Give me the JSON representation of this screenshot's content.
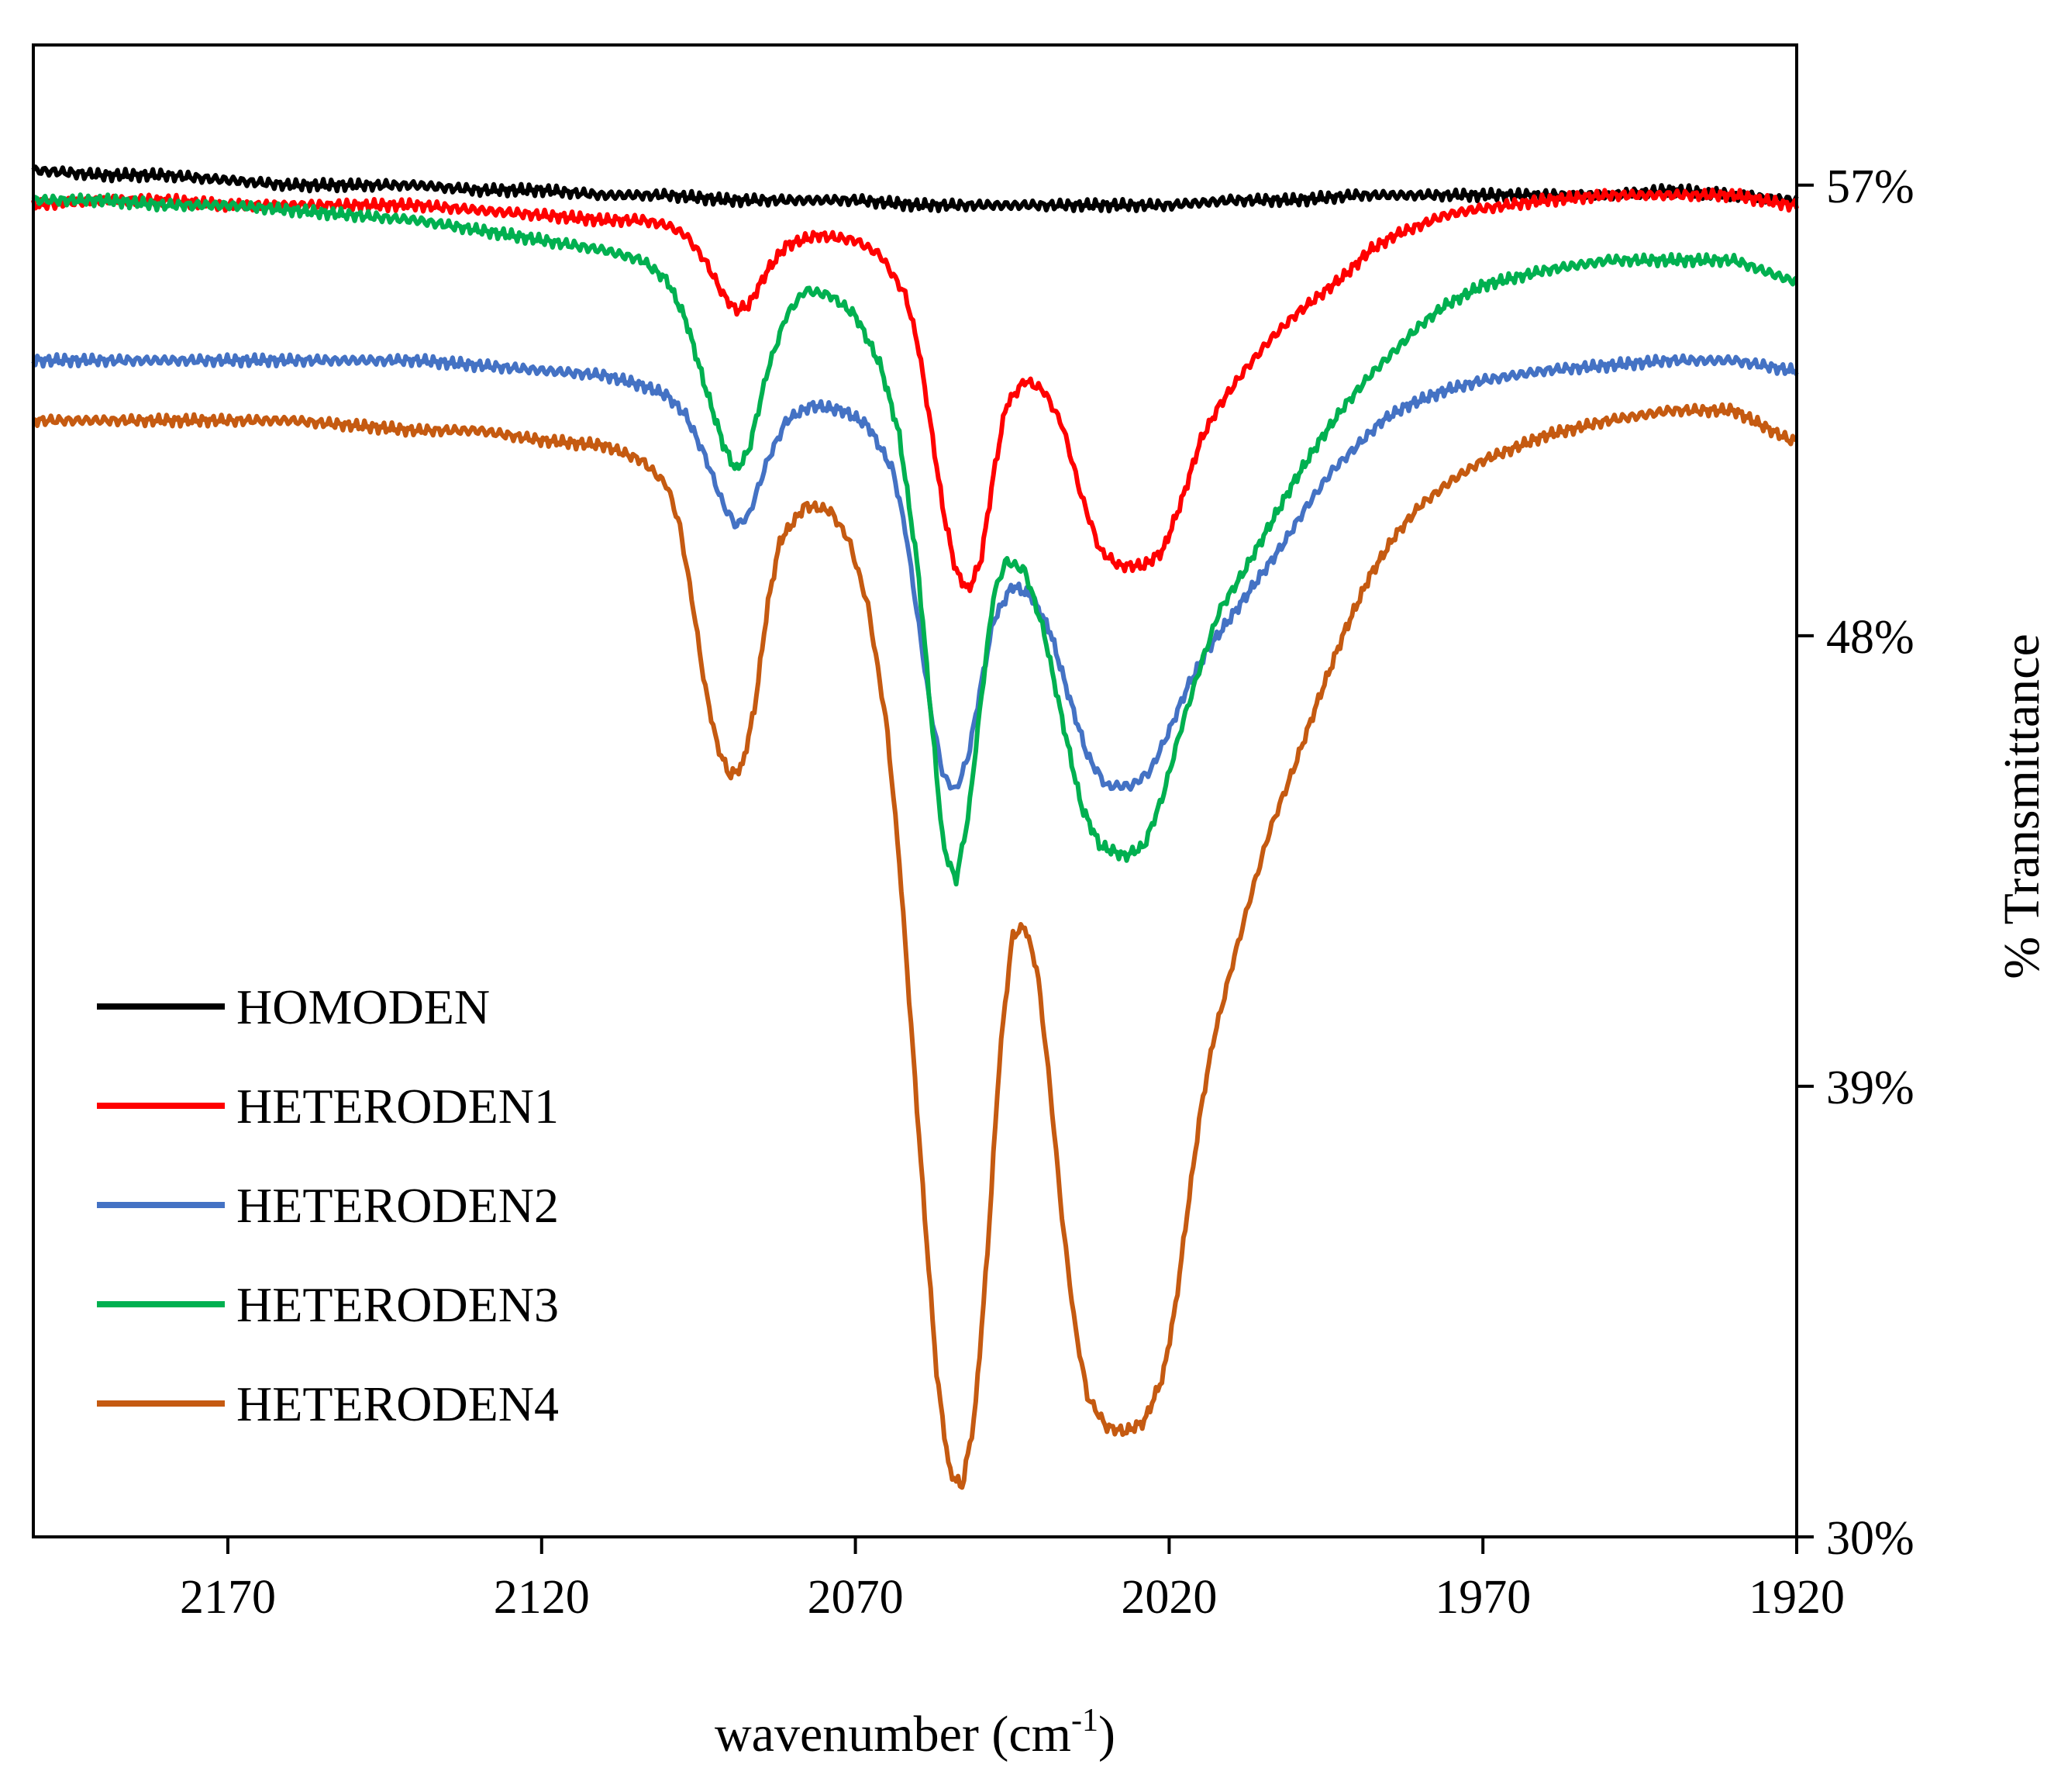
{
  "chart_data": {
    "type": "line",
    "title": "",
    "xlabel": "wavenumber (cm",
    "xlabel_superscript": "-1",
    "xlabel_suffix": ")",
    "ylabel": "% Transmittance",
    "xlim": [
      2201,
      1920
    ],
    "ylim": [
      30,
      59.8
    ],
    "x_reversed": true,
    "y_axis_side": "right",
    "x_ticks": [
      2170,
      2120,
      2070,
      2020,
      1970,
      1920
    ],
    "x_tick_labels": [
      "2170",
      "2120",
      "2070",
      "2020",
      "1970",
      "1920"
    ],
    "y_ticks": [
      30,
      39,
      48,
      57
    ],
    "y_tick_labels": [
      "30%",
      "39%",
      "48%",
      "57%"
    ],
    "legend_position": "lower-left",
    "series": [
      {
        "name": "HOMODEN",
        "color": "#000000",
        "points": [
          [
            2201,
            57.3
          ],
          [
            2190,
            57.2
          ],
          [
            2180,
            57.2
          ],
          [
            2170,
            57.1
          ],
          [
            2160,
            57.0
          ],
          [
            2150,
            57.0
          ],
          [
            2140,
            57.0
          ],
          [
            2130,
            56.9
          ],
          [
            2120,
            56.9
          ],
          [
            2110,
            56.8
          ],
          [
            2100,
            56.8
          ],
          [
            2090,
            56.7
          ],
          [
            2080,
            56.7
          ],
          [
            2070,
            56.7
          ],
          [
            2060,
            56.6
          ],
          [
            2050,
            56.6
          ],
          [
            2040,
            56.6
          ],
          [
            2030,
            56.6
          ],
          [
            2020,
            56.6
          ],
          [
            2010,
            56.7
          ],
          [
            2000,
            56.7
          ],
          [
            1990,
            56.8
          ],
          [
            1980,
            56.8
          ],
          [
            1970,
            56.8
          ],
          [
            1960,
            56.8
          ],
          [
            1950,
            56.8
          ],
          [
            1940,
            56.9
          ],
          [
            1930,
            56.8
          ],
          [
            1921,
            56.7
          ]
        ]
      },
      {
        "name": "HETERODEN1",
        "color": "#ff0000",
        "points": [
          [
            2201,
            56.6
          ],
          [
            2190,
            56.7
          ],
          [
            2180,
            56.7
          ],
          [
            2170,
            56.6
          ],
          [
            2160,
            56.6
          ],
          [
            2150,
            56.6
          ],
          [
            2140,
            56.6
          ],
          [
            2130,
            56.5
          ],
          [
            2120,
            56.4
          ],
          [
            2110,
            56.3
          ],
          [
            2104,
            56.3
          ],
          [
            2100,
            56.2
          ],
          [
            2097,
            56.0
          ],
          [
            2094,
            55.5
          ],
          [
            2091,
            54.8
          ],
          [
            2089,
            54.5
          ],
          [
            2087,
            54.6
          ],
          [
            2084,
            55.3
          ],
          [
            2081,
            55.8
          ],
          [
            2076,
            56.0
          ],
          [
            2070,
            55.9
          ],
          [
            2066,
            55.6
          ],
          [
            2062,
            54.8
          ],
          [
            2060,
            53.8
          ],
          [
            2058,
            52.2
          ],
          [
            2056,
            50.5
          ],
          [
            2054,
            49.3
          ],
          [
            2052,
            48.9
          ],
          [
            2050,
            49.5
          ],
          [
            2048,
            51.2
          ],
          [
            2046,
            52.6
          ],
          [
            2043,
            53.1
          ],
          [
            2040,
            52.9
          ],
          [
            2037,
            52.2
          ],
          [
            2034,
            50.8
          ],
          [
            2031,
            49.7
          ],
          [
            2028,
            49.4
          ],
          [
            2024,
            49.4
          ],
          [
            2021,
            49.7
          ],
          [
            2018,
            50.7
          ],
          [
            2015,
            51.9
          ],
          [
            2012,
            52.6
          ],
          [
            2008,
            53.3
          ],
          [
            2004,
            53.9
          ],
          [
            2000,
            54.4
          ],
          [
            1996,
            54.8
          ],
          [
            1992,
            55.2
          ],
          [
            1988,
            55.7
          ],
          [
            1984,
            56.0
          ],
          [
            1980,
            56.2
          ],
          [
            1976,
            56.4
          ],
          [
            1972,
            56.5
          ],
          [
            1966,
            56.6
          ],
          [
            1960,
            56.7
          ],
          [
            1950,
            56.8
          ],
          [
            1940,
            56.8
          ],
          [
            1930,
            56.8
          ],
          [
            1921,
            56.6
          ]
        ]
      },
      {
        "name": "HETERODEN2",
        "color": "#4472c4",
        "points": [
          [
            2201,
            53.5
          ],
          [
            2190,
            53.5
          ],
          [
            2180,
            53.5
          ],
          [
            2170,
            53.5
          ],
          [
            2160,
            53.5
          ],
          [
            2150,
            53.5
          ],
          [
            2140,
            53.5
          ],
          [
            2130,
            53.4
          ],
          [
            2120,
            53.3
          ],
          [
            2110,
            53.2
          ],
          [
            2104,
            53.0
          ],
          [
            2100,
            52.8
          ],
          [
            2097,
            52.4
          ],
          [
            2094,
            51.6
          ],
          [
            2091,
            50.6
          ],
          [
            2089,
            50.2
          ],
          [
            2087,
            50.4
          ],
          [
            2084,
            51.5
          ],
          [
            2081,
            52.3
          ],
          [
            2077,
            52.6
          ],
          [
            2072,
            52.5
          ],
          [
            2068,
            52.2
          ],
          [
            2064,
            51.3
          ],
          [
            2062,
            50.1
          ],
          [
            2060,
            48.3
          ],
          [
            2058,
            46.5
          ],
          [
            2056,
            45.2
          ],
          [
            2054,
            44.9
          ],
          [
            2052,
            45.6
          ],
          [
            2050,
            47.0
          ],
          [
            2048,
            48.3
          ],
          [
            2045,
            49.0
          ],
          [
            2042,
            48.8
          ],
          [
            2039,
            48.1
          ],
          [
            2036,
            46.8
          ],
          [
            2033,
            45.6
          ],
          [
            2030,
            45.0
          ],
          [
            2026,
            45.0
          ],
          [
            2023,
            45.3
          ],
          [
            2020,
            46.1
          ],
          [
            2017,
            47.0
          ],
          [
            2014,
            47.7
          ],
          [
            2010,
            48.4
          ],
          [
            2006,
            49.1
          ],
          [
            2002,
            49.8
          ],
          [
            1998,
            50.6
          ],
          [
            1994,
            51.3
          ],
          [
            1990,
            51.8
          ],
          [
            1986,
            52.3
          ],
          [
            1982,
            52.6
          ],
          [
            1976,
            52.9
          ],
          [
            1970,
            53.1
          ],
          [
            1960,
            53.3
          ],
          [
            1950,
            53.4
          ],
          [
            1940,
            53.5
          ],
          [
            1930,
            53.5
          ],
          [
            1921,
            53.3
          ]
        ]
      },
      {
        "name": "HETERODEN3",
        "color": "#00b050",
        "points": [
          [
            2201,
            56.7
          ],
          [
            2190,
            56.7
          ],
          [
            2180,
            56.6
          ],
          [
            2170,
            56.6
          ],
          [
            2160,
            56.5
          ],
          [
            2150,
            56.4
          ],
          [
            2140,
            56.3
          ],
          [
            2130,
            56.1
          ],
          [
            2120,
            55.9
          ],
          [
            2110,
            55.7
          ],
          [
            2104,
            55.5
          ],
          [
            2100,
            55.1
          ],
          [
            2097,
            54.3
          ],
          [
            2094,
            53.0
          ],
          [
            2091,
            51.8
          ],
          [
            2089,
            51.3
          ],
          [
            2087,
            51.7
          ],
          [
            2084,
            53.3
          ],
          [
            2081,
            54.4
          ],
          [
            2078,
            54.9
          ],
          [
            2074,
            54.8
          ],
          [
            2070,
            54.4
          ],
          [
            2066,
            53.4
          ],
          [
            2063,
            52.0
          ],
          [
            2060,
            49.3
          ],
          [
            2058,
            46.5
          ],
          [
            2056,
            43.8
          ],
          [
            2054,
            43.1
          ],
          [
            2052,
            44.4
          ],
          [
            2050,
            46.7
          ],
          [
            2048,
            48.8
          ],
          [
            2046,
            49.5
          ],
          [
            2043,
            49.3
          ],
          [
            2040,
            48.1
          ],
          [
            2037,
            46.3
          ],
          [
            2034,
            44.6
          ],
          [
            2031,
            43.8
          ],
          [
            2027,
            43.6
          ],
          [
            2024,
            43.8
          ],
          [
            2021,
            44.8
          ],
          [
            2018,
            46.2
          ],
          [
            2015,
            47.4
          ],
          [
            2012,
            48.5
          ],
          [
            2008,
            49.3
          ],
          [
            2004,
            50.2
          ],
          [
            2000,
            51.1
          ],
          [
            1996,
            51.9
          ],
          [
            1992,
            52.6
          ],
          [
            1988,
            53.2
          ],
          [
            1984,
            53.7
          ],
          [
            1980,
            54.2
          ],
          [
            1976,
            54.6
          ],
          [
            1970,
            55.0
          ],
          [
            1960,
            55.3
          ],
          [
            1950,
            55.5
          ],
          [
            1940,
            55.5
          ],
          [
            1930,
            55.5
          ],
          [
            1921,
            55.1
          ]
        ]
      },
      {
        "name": "HETERODEN4",
        "color": "#c55a11",
        "points": [
          [
            2201,
            52.3
          ],
          [
            2190,
            52.3
          ],
          [
            2180,
            52.3
          ],
          [
            2170,
            52.3
          ],
          [
            2160,
            52.3
          ],
          [
            2150,
            52.2
          ],
          [
            2140,
            52.1
          ],
          [
            2130,
            52.1
          ],
          [
            2120,
            51.9
          ],
          [
            2110,
            51.8
          ],
          [
            2104,
            51.5
          ],
          [
            2100,
            51.0
          ],
          [
            2098,
            50.2
          ],
          [
            2096,
            48.7
          ],
          [
            2094,
            47.0
          ],
          [
            2092,
            45.8
          ],
          [
            2090,
            45.2
          ],
          [
            2088,
            45.4
          ],
          [
            2086,
            46.6
          ],
          [
            2084,
            48.6
          ],
          [
            2082,
            49.9
          ],
          [
            2078,
            50.6
          ],
          [
            2074,
            50.5
          ],
          [
            2071,
            49.9
          ],
          [
            2068,
            48.6
          ],
          [
            2065,
            46.2
          ],
          [
            2063,
            43.5
          ],
          [
            2061,
            40.0
          ],
          [
            2059,
            36.5
          ],
          [
            2057,
            33.2
          ],
          [
            2055,
            31.3
          ],
          [
            2053,
            31.0
          ],
          [
            2051,
            32.4
          ],
          [
            2049,
            35.6
          ],
          [
            2047,
            39.6
          ],
          [
            2045,
            42.0
          ],
          [
            2043,
            42.2
          ],
          [
            2041,
            41.3
          ],
          [
            2039,
            39.0
          ],
          [
            2037,
            36.3
          ],
          [
            2035,
            34.2
          ],
          [
            2033,
            32.8
          ],
          [
            2030,
            32.2
          ],
          [
            2027,
            32.1
          ],
          [
            2024,
            32.3
          ],
          [
            2021,
            33.2
          ],
          [
            2019,
            34.6
          ],
          [
            2017,
            36.6
          ],
          [
            2015,
            38.5
          ],
          [
            2013,
            39.9
          ],
          [
            2010,
            41.4
          ],
          [
            2007,
            42.8
          ],
          [
            2004,
            44.1
          ],
          [
            2000,
            45.4
          ],
          [
            1996,
            46.8
          ],
          [
            1992,
            48.1
          ],
          [
            1988,
            49.2
          ],
          [
            1984,
            50.0
          ],
          [
            1980,
            50.6
          ],
          [
            1975,
            51.1
          ],
          [
            1970,
            51.5
          ],
          [
            1960,
            52.0
          ],
          [
            1950,
            52.3
          ],
          [
            1940,
            52.5
          ],
          [
            1930,
            52.5
          ],
          [
            1921,
            51.9
          ]
        ]
      }
    ]
  }
}
